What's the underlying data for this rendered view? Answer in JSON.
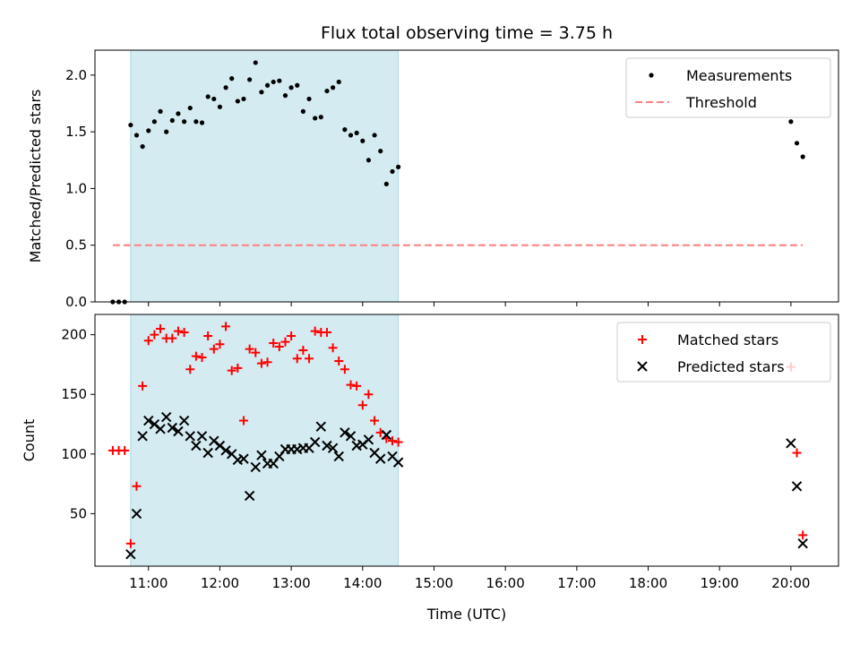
{
  "chart_data": [
    {
      "type": "scatter",
      "title": "Flux total observing time = 3.75 h",
      "xlabel": "",
      "ylabel": "Matched/Predicted stars",
      "xlim": [
        "10:15",
        "20:40"
      ],
      "ylim": [
        0,
        2.22
      ],
      "yticks": [
        "0.0",
        "0.5",
        "1.0",
        "1.5",
        "2.0"
      ],
      "shaded_region": {
        "start": "10:45",
        "end": "14:30",
        "color": "#d4ebf1"
      },
      "legend_position": "top-right",
      "series": [
        {
          "name": "Measurements",
          "marker": "dot",
          "color": "#000000",
          "x": [
            "10:30",
            "10:35",
            "10:40",
            "10:45",
            "10:50",
            "10:55",
            "11:00",
            "11:05",
            "11:10",
            "11:15",
            "11:20",
            "11:25",
            "11:30",
            "11:35",
            "11:40",
            "11:45",
            "11:50",
            "11:55",
            "12:00",
            "12:05",
            "12:10",
            "12:15",
            "12:20",
            "12:25",
            "12:30",
            "12:35",
            "12:40",
            "12:45",
            "12:50",
            "12:55",
            "13:00",
            "13:05",
            "13:10",
            "13:15",
            "13:20",
            "13:25",
            "13:30",
            "13:35",
            "13:40",
            "13:45",
            "13:50",
            "13:55",
            "14:00",
            "14:05",
            "14:10",
            "14:15",
            "14:20",
            "14:25",
            "14:30",
            "20:00",
            "20:05",
            "20:10"
          ],
          "y": [
            0,
            0,
            0,
            1.56,
            1.47,
            1.37,
            1.51,
            1.59,
            1.68,
            1.5,
            1.6,
            1.66,
            1.59,
            1.71,
            1.59,
            1.58,
            1.81,
            1.79,
            1.72,
            1.89,
            1.97,
            1.77,
            1.79,
            1.96,
            2.11,
            1.85,
            1.91,
            1.94,
            1.95,
            1.82,
            1.89,
            1.91,
            1.68,
            1.79,
            1.62,
            1.63,
            1.86,
            1.89,
            1.94,
            1.52,
            1.47,
            1.49,
            1.42,
            1.25,
            1.47,
            1.33,
            1.04,
            1.15,
            1.19,
            1.59,
            1.4,
            1.28
          ]
        },
        {
          "name": "Threshold",
          "type": "line",
          "style": "dashed",
          "color": "#ff7f7f",
          "x": [
            "10:30",
            "20:10"
          ],
          "y": [
            0.5,
            0.5
          ]
        }
      ]
    },
    {
      "type": "scatter",
      "title": "",
      "xlabel": "Time (UTC)",
      "ylabel": "Count",
      "xlim": [
        "10:15",
        "20:40"
      ],
      "ylim": [
        6,
        217
      ],
      "yticks": [
        "50",
        "100",
        "150",
        "200"
      ],
      "xticks": [
        "11:00",
        "12:00",
        "13:00",
        "14:00",
        "15:00",
        "16:00",
        "17:00",
        "18:00",
        "19:00",
        "20:00"
      ],
      "shaded_region": {
        "start": "10:45",
        "end": "14:30",
        "color": "#d4ebf1"
      },
      "legend_position": "top-right",
      "series": [
        {
          "name": "Matched stars",
          "marker": "plus",
          "color": "#ff0000",
          "x": [
            "10:30",
            "10:35",
            "10:40",
            "10:45",
            "10:50",
            "10:55",
            "11:00",
            "11:05",
            "11:10",
            "11:15",
            "11:20",
            "11:25",
            "11:30",
            "11:35",
            "11:40",
            "11:45",
            "11:50",
            "11:55",
            "12:00",
            "12:05",
            "12:10",
            "12:15",
            "12:20",
            "12:25",
            "12:30",
            "12:35",
            "12:40",
            "12:45",
            "12:50",
            "12:55",
            "13:00",
            "13:05",
            "13:10",
            "13:15",
            "13:20",
            "13:25",
            "13:30",
            "13:35",
            "13:40",
            "13:45",
            "13:50",
            "13:55",
            "14:00",
            "14:05",
            "14:10",
            "14:15",
            "14:20",
            "14:25",
            "14:30",
            "20:00",
            "20:05",
            "20:10"
          ],
          "y": [
            103,
            103,
            103,
            25,
            73,
            157,
            195,
            200,
            205,
            197,
            197,
            203,
            202,
            171,
            182,
            181,
            199,
            188,
            192,
            207,
            170,
            172,
            128,
            188,
            185,
            176,
            177,
            193,
            190,
            194,
            199,
            180,
            187,
            180,
            203,
            202,
            202,
            189,
            178,
            171,
            158,
            157,
            141,
            150,
            128,
            118,
            113,
            111,
            110,
            173,
            101,
            32
          ]
        },
        {
          "name": "Predicted stars",
          "marker": "x",
          "color": "#000000",
          "x": [
            "10:45",
            "10:50",
            "10:55",
            "11:00",
            "11:05",
            "11:10",
            "11:15",
            "11:20",
            "11:25",
            "11:30",
            "11:35",
            "11:40",
            "11:45",
            "11:50",
            "11:55",
            "12:00",
            "12:05",
            "12:10",
            "12:15",
            "12:20",
            "12:25",
            "12:30",
            "12:35",
            "12:40",
            "12:45",
            "12:50",
            "12:55",
            "13:00",
            "13:05",
            "13:10",
            "13:15",
            "13:20",
            "13:25",
            "13:30",
            "13:35",
            "13:40",
            "13:45",
            "13:50",
            "13:55",
            "14:00",
            "14:05",
            "14:10",
            "14:15",
            "14:20",
            "14:25",
            "14:30",
            "20:00",
            "20:05",
            "20:10"
          ],
          "y": [
            16,
            50,
            115,
            128,
            125,
            121,
            131,
            122,
            119,
            128,
            115,
            107,
            115,
            101,
            111,
            107,
            103,
            100,
            95,
            96,
            65,
            89,
            99,
            92,
            92,
            98,
            104,
            104,
            104,
            105,
            105,
            110,
            123,
            107,
            105,
            98,
            118,
            115,
            107,
            108,
            112,
            101,
            96,
            116,
            98,
            93,
            109,
            73,
            25
          ]
        }
      ]
    }
  ]
}
